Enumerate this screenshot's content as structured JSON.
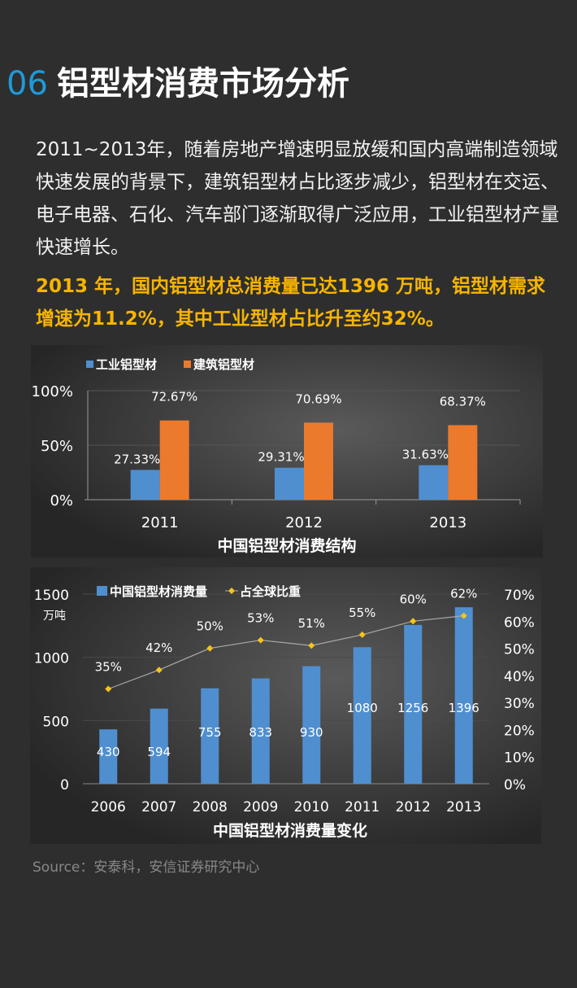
{
  "header": {
    "number": "06",
    "title": "铝型材消费市场分析"
  },
  "paragraph": "2011~2013年，随着房地产增速明显放缓和国内高端制造领域快速发展的背景下，建筑铝型材占比逐步减少，铝型材在交运、电子电器、石化、汽车部门逐渐取得广泛应用，工业铝型材产量快速增长。",
  "highlight": "2013 年，国内铝型材总消费量已达1396 万吨，铝型材需求增速为11.2%，其中工业型材占比升至约32%。",
  "source": "Source：安泰科，安信证券研究中心",
  "colors": {
    "blue": "#4f8fd0",
    "orange": "#ec7a2c",
    "line": "#aaaaaa",
    "marker": "#f5c518",
    "accent": "#1f9ad8",
    "highlight": "#f7b500"
  },
  "chart_data": [
    {
      "type": "bar",
      "title": "中国铝型材消费结构",
      "categories": [
        "2011",
        "2012",
        "2013"
      ],
      "series": [
        {
          "name": "工业铝型材",
          "values": [
            27.33,
            29.31,
            31.63
          ],
          "labels": [
            "27.33%",
            "29.31%",
            "31.63%"
          ]
        },
        {
          "name": "建筑铝型材",
          "values": [
            72.67,
            70.69,
            68.37
          ],
          "labels": [
            "72.67%",
            "70.69%",
            "68.37%"
          ]
        }
      ],
      "ylim": [
        0,
        100
      ],
      "yticks": [
        "0%",
        "50%",
        "100%"
      ],
      "legend": "top-left",
      "grid": true
    },
    {
      "type": "bar+line",
      "title": "中国铝型材消费量变化",
      "ylabel": "万吨",
      "categories": [
        "2006",
        "2007",
        "2008",
        "2009",
        "2010",
        "2011",
        "2012",
        "2013"
      ],
      "series": [
        {
          "name": "中国铝型材消费量",
          "type": "bar",
          "axis": "left",
          "values": [
            430,
            594,
            755,
            833,
            930,
            1080,
            1256,
            1396
          ]
        },
        {
          "name": "占全球比重",
          "type": "line",
          "axis": "right",
          "values": [
            35,
            42,
            50,
            53,
            51,
            55,
            60,
            62
          ],
          "labels": [
            "35%",
            "42%",
            "50%",
            "53%",
            "51%",
            "55%",
            "60%",
            "62%"
          ]
        }
      ],
      "ylim": [
        0,
        1500
      ],
      "yticks": [
        "0",
        "500",
        "1000",
        "1500"
      ],
      "y2lim": [
        0,
        70
      ],
      "y2ticks": [
        "0%",
        "10%",
        "20%",
        "30%",
        "40%",
        "50%",
        "60%",
        "70%"
      ],
      "legend": "top",
      "grid": true
    }
  ]
}
